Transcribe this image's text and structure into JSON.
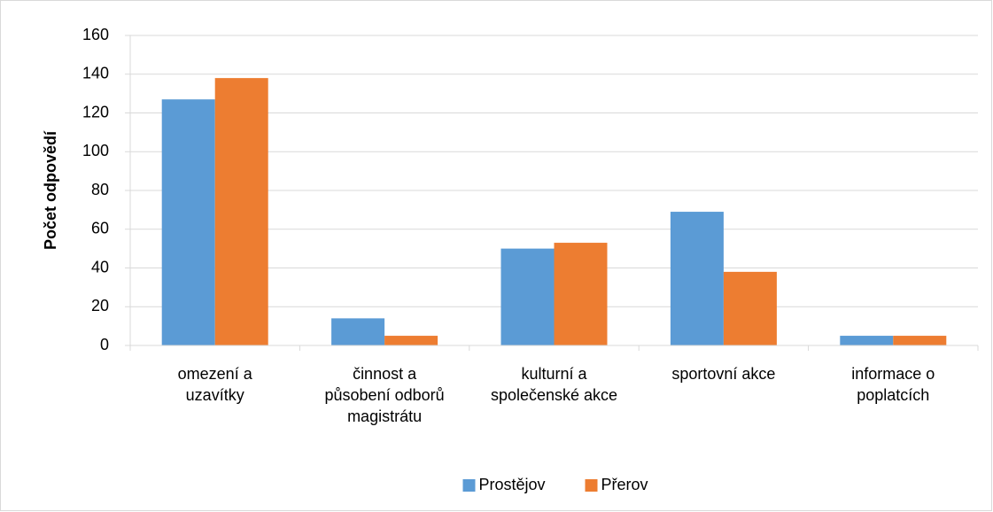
{
  "chart_data": {
    "type": "bar",
    "ylabel": "Počet odpovědí",
    "categories": [
      "omezení a\nuzavítky",
      "činnost a\npůsobení odborů\nmagistrátu",
      "kulturní a\nspolečenské akce",
      "sportovní akce",
      "informace o\npoplatcích"
    ],
    "series": [
      {
        "name": "Prostějov",
        "color": "#5b9bd5",
        "values": [
          127,
          14,
          50,
          69,
          5
        ]
      },
      {
        "name": "Přerov",
        "color": "#ed7d31",
        "values": [
          138,
          5,
          53,
          38,
          5
        ]
      }
    ],
    "ylim": [
      0,
      160
    ],
    "yticks": [
      0,
      20,
      40,
      60,
      80,
      100,
      120,
      140,
      160
    ],
    "grid": true,
    "legend": "bottom"
  }
}
